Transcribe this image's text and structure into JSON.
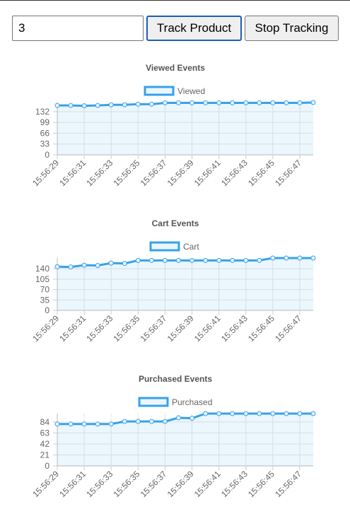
{
  "ui": {
    "quantity": "3",
    "buttons": [
      "Track Product",
      "Stop Tracking"
    ]
  },
  "chart_data": [
    {
      "type": "line",
      "title": "Viewed Events",
      "categories": [
        "15:56:29",
        null,
        "15:56:31",
        null,
        "15:56:33",
        null,
        "15:56:35",
        null,
        "15:56:37",
        null,
        "15:56:39",
        null,
        "15:56:41",
        null,
        "15:56:43",
        null,
        "15:56:45",
        null,
        "15:56:47",
        null
      ],
      "series": [
        {
          "name": "Viewed",
          "color": "#36a2eb",
          "values": [
            151,
            151,
            150,
            151,
            153,
            153,
            155,
            155,
            159,
            159,
            159,
            159,
            159,
            159,
            159,
            159,
            159,
            159,
            159,
            160
          ]
        }
      ],
      "ylim": [
        0,
        160
      ],
      "yticks": [
        0,
        33,
        66,
        99,
        132
      ],
      "grid": true
    },
    {
      "type": "line",
      "title": "Cart Events",
      "categories": [
        "15:56:29",
        null,
        "15:56:31",
        null,
        "15:56:33",
        null,
        "15:56:35",
        null,
        "15:56:37",
        null,
        "15:56:39",
        null,
        "15:56:41",
        null,
        "15:56:43",
        null,
        "15:56:45",
        null,
        "15:56:47",
        null
      ],
      "series": [
        {
          "name": "Cart",
          "color": "#36a2eb",
          "values": [
            147,
            146,
            152,
            151,
            159,
            158,
            168,
            168,
            168,
            168,
            168,
            168,
            168,
            168,
            168,
            168,
            176,
            176,
            176,
            176
          ]
        }
      ],
      "ylim": [
        0,
        176
      ],
      "yticks": [
        0,
        35,
        70,
        105,
        140
      ],
      "grid": true
    },
    {
      "type": "line",
      "title": "Purchased Events",
      "categories": [
        "15:56:29",
        null,
        "15:56:31",
        null,
        "15:56:33",
        null,
        "15:56:35",
        null,
        "15:56:37",
        null,
        "15:56:39",
        null,
        "15:56:41",
        null,
        "15:56:43",
        null,
        "15:56:45",
        null,
        "15:56:47",
        null
      ],
      "series": [
        {
          "name": "Purchased",
          "color": "#36a2eb",
          "values": [
            80,
            80,
            80,
            80,
            80,
            85,
            85,
            85,
            85,
            92,
            91,
            100,
            100,
            100,
            100,
            100,
            100,
            100,
            100,
            100
          ]
        }
      ],
      "ylim": [
        0,
        100
      ],
      "yticks": [
        0,
        21,
        42,
        63,
        84
      ],
      "grid": true
    }
  ]
}
